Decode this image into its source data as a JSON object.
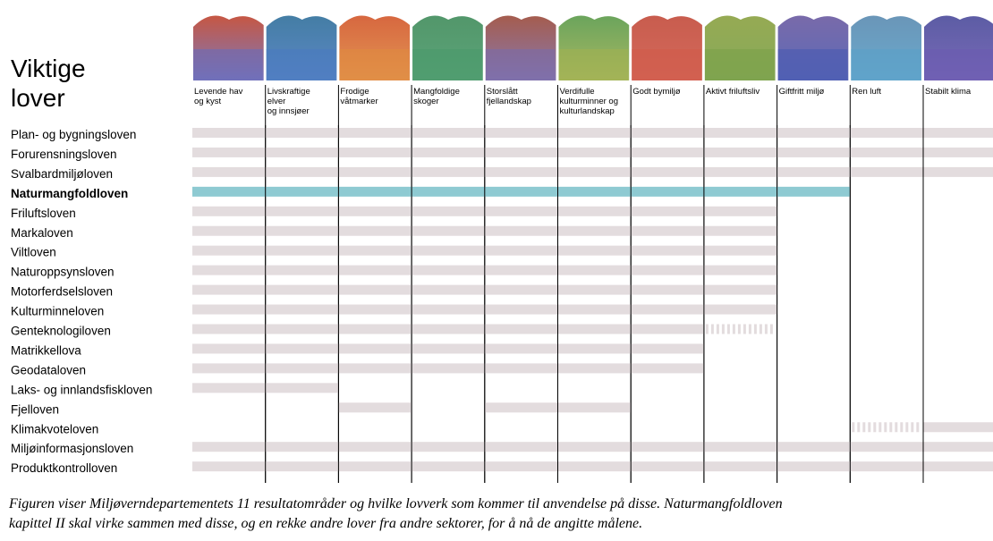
{
  "title": [
    "Viktige",
    "lover"
  ],
  "columns": [
    [
      "Levende hav",
      "og kyst"
    ],
    [
      "Livskraftige",
      "elver",
      "og innsjøer"
    ],
    [
      "Frodige",
      "våtmarker"
    ],
    [
      "Mangfoldige",
      "skoger"
    ],
    [
      "Storslått",
      "fjellandskap"
    ],
    [
      "Verdifulle",
      "kulturminner og",
      "kulturlandskap"
    ],
    [
      "Godt bymiljø"
    ],
    [
      "Aktivt friluftsliv"
    ],
    [
      "Giftfritt miljø"
    ],
    [
      "Ren luft"
    ],
    [
      "Stabilt klima"
    ]
  ],
  "rows": [
    {
      "name": "Plan- og bygningsloven",
      "spans": [
        [
          0,
          10
        ]
      ]
    },
    {
      "name": "Forurensningsloven",
      "spans": [
        [
          0,
          10
        ]
      ]
    },
    {
      "name": "Svalbardmiljøloven",
      "spans": [
        [
          0,
          10
        ]
      ]
    },
    {
      "name": "Naturmangfoldloven",
      "spans": [
        [
          0,
          8
        ]
      ],
      "highlight": true
    },
    {
      "name": "Friluftsloven",
      "spans": [
        [
          0,
          7
        ]
      ]
    },
    {
      "name": "Markaloven",
      "spans": [
        [
          0,
          7
        ]
      ]
    },
    {
      "name": "Viltloven",
      "spans": [
        [
          0,
          7
        ]
      ]
    },
    {
      "name": "Naturoppsynsloven",
      "spans": [
        [
          0,
          7
        ]
      ]
    },
    {
      "name": "Motorferdselsloven",
      "spans": [
        [
          0,
          7
        ]
      ]
    },
    {
      "name": "Kulturminneloven",
      "spans": [
        [
          0,
          7
        ]
      ]
    },
    {
      "name": "Genteknologiloven",
      "spans": [
        [
          0,
          6
        ]
      ],
      "dashed_spans": [
        [
          7,
          7
        ]
      ]
    },
    {
      "name": "Matrikkellova",
      "spans": [
        [
          0,
          6
        ]
      ]
    },
    {
      "name": "Geodataloven",
      "spans": [
        [
          0,
          6
        ]
      ]
    },
    {
      "name": "Laks- og innlandsfiskloven",
      "spans": [
        [
          0,
          1
        ]
      ]
    },
    {
      "name": "Fjelloven",
      "spans": [
        [
          2,
          2
        ],
        [
          4,
          5
        ]
      ]
    },
    {
      "name": "Klimakvoteloven",
      "spans": [
        [
          10,
          10
        ]
      ],
      "dashed_spans": [
        [
          9,
          9
        ]
      ]
    },
    {
      "name": "Miljøinformasjonsloven",
      "spans": [
        [
          0,
          10
        ]
      ]
    },
    {
      "name": "Produktkontrolloven",
      "spans": [
        [
          0,
          10
        ]
      ]
    }
  ],
  "caption": [
    "Figuren viser Miljøverndepartementets 11 resultatområder og hvilke lovverk som kommer til anvendelse på disse. Naturmangfoldloven",
    "kapittel II skal virke sammen med disse, og en rekke andre lover fra andre sektorer, for å nå de angitte målene."
  ]
}
